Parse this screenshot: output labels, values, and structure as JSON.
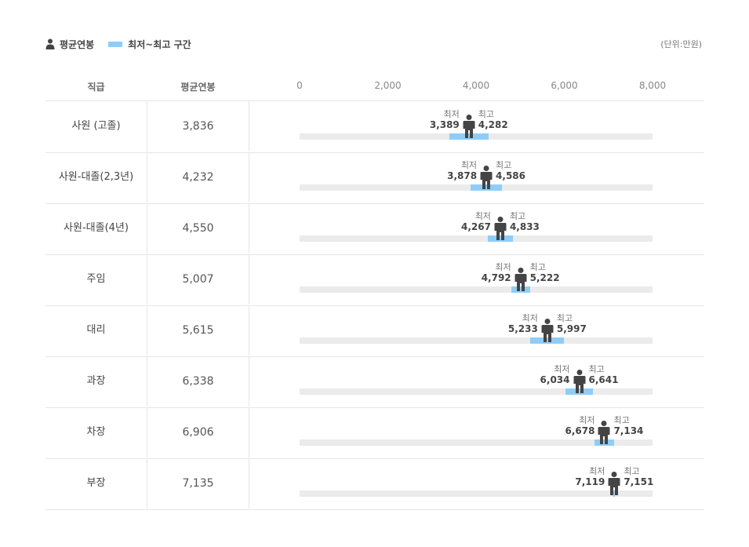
{
  "legend": {
    "avg_label": "평균연봉",
    "range_label": "최저~최고 구간",
    "person_icon": "person-icon"
  },
  "unit_label": "(단위:만원)",
  "header": {
    "rank": "직급",
    "avg": "평균연봉"
  },
  "colors": {
    "range": "#8ecdf8",
    "track": "#ebebeb",
    "icon": "#444444"
  },
  "chart_data": {
    "type": "range-dot",
    "xlim": [
      0,
      8000
    ],
    "ticks": [
      "0",
      "2,000",
      "4,000",
      "6,000",
      "8,000"
    ],
    "tick_values": [
      0,
      2000,
      4000,
      6000,
      8000
    ],
    "min_label": "최저",
    "max_label": "최고",
    "rows": [
      {
        "rank": "사원 (고졸)",
        "avg": 3836,
        "avg_text": "3,836",
        "min": 3389,
        "min_text": "3,389",
        "max": 4282,
        "max_text": "4,282"
      },
      {
        "rank": "사원-대졸(2,3년)",
        "avg": 4232,
        "avg_text": "4,232",
        "min": 3878,
        "min_text": "3,878",
        "max": 4586,
        "max_text": "4,586"
      },
      {
        "rank": "사원-대졸(4년)",
        "avg": 4550,
        "avg_text": "4,550",
        "min": 4267,
        "min_text": "4,267",
        "max": 4833,
        "max_text": "4,833"
      },
      {
        "rank": "주임",
        "avg": 5007,
        "avg_text": "5,007",
        "min": 4792,
        "min_text": "4,792",
        "max": 5222,
        "max_text": "5,222"
      },
      {
        "rank": "대리",
        "avg": 5615,
        "avg_text": "5,615",
        "min": 5233,
        "min_text": "5,233",
        "max": 5997,
        "max_text": "5,997"
      },
      {
        "rank": "과장",
        "avg": 6338,
        "avg_text": "6,338",
        "min": 6034,
        "min_text": "6,034",
        "max": 6641,
        "max_text": "6,641"
      },
      {
        "rank": "차장",
        "avg": 6906,
        "avg_text": "6,906",
        "min": 6678,
        "min_text": "6,678",
        "max": 7134,
        "max_text": "7,134"
      },
      {
        "rank": "부장",
        "avg": 7135,
        "avg_text": "7,135",
        "min": 7119,
        "min_text": "7,119",
        "max": 7151,
        "max_text": "7,151"
      }
    ]
  }
}
